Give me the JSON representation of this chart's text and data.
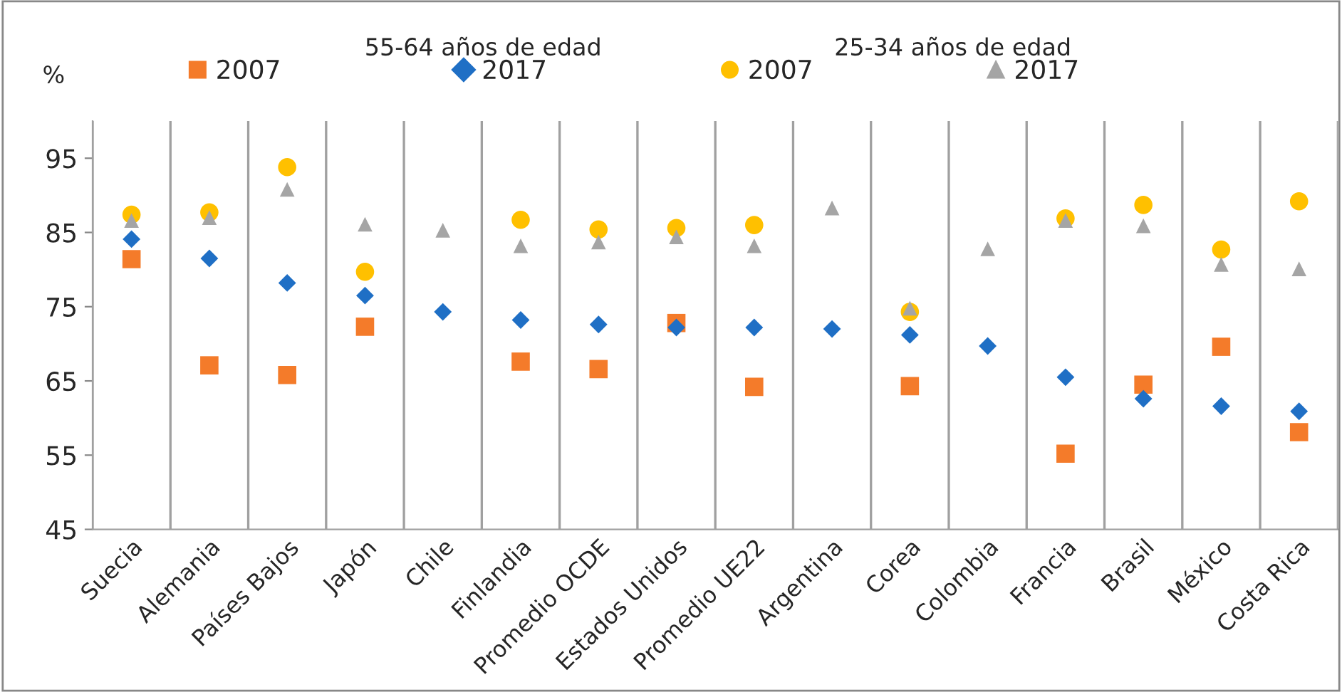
{
  "chart_data": {
    "type": "scatter",
    "ylabel": "%",
    "categories": [
      "Suecia",
      "Alemania",
      "Países Bajos",
      "Japón",
      "Chile",
      "Finlandia",
      "Promedio OCDE",
      "Estados Unidos",
      "Promedio UE22",
      "Argentina",
      "Corea",
      "Colombia",
      "Francia",
      "Brasil",
      "México",
      "Costa Rica"
    ],
    "series": [
      {
        "name": "2007",
        "color": "#f47b2a",
        "marker": "square",
        "values": [
          81.4,
          67.1,
          65.8,
          72.3,
          null,
          67.6,
          66.6,
          72.8,
          64.2,
          null,
          64.3,
          null,
          55.2,
          64.5,
          69.6,
          58.1
        ]
      },
      {
        "name": "2017",
        "color": "#1f6fc5",
        "marker": "diamond",
        "values": [
          84.1,
          81.5,
          78.2,
          76.5,
          74.3,
          73.2,
          72.6,
          72.2,
          72.2,
          72.0,
          71.2,
          69.7,
          65.5,
          62.6,
          61.6,
          60.9
        ]
      },
      {
        "name": "2007",
        "color": "#ffc000",
        "marker": "circle",
        "values": [
          87.4,
          87.7,
          93.8,
          79.7,
          null,
          86.7,
          85.4,
          85.6,
          86.0,
          null,
          74.3,
          null,
          86.9,
          88.7,
          82.7,
          89.2
        ]
      },
      {
        "name": "2017",
        "color": "#a5a5a5",
        "marker": "triangle",
        "values": [
          86.6,
          87.0,
          90.8,
          86.1,
          85.3,
          83.2,
          83.7,
          84.4,
          83.2,
          88.3,
          74.8,
          82.8,
          86.6,
          85.9,
          80.7,
          80.1
        ]
      }
    ],
    "annotations": [
      "55-64 años de edad",
      "25-34 años de edad"
    ],
    "ylim": [
      45,
      100
    ],
    "yticks": [
      45,
      55,
      65,
      75,
      85,
      95
    ],
    "grid": "x",
    "legend": "top"
  }
}
